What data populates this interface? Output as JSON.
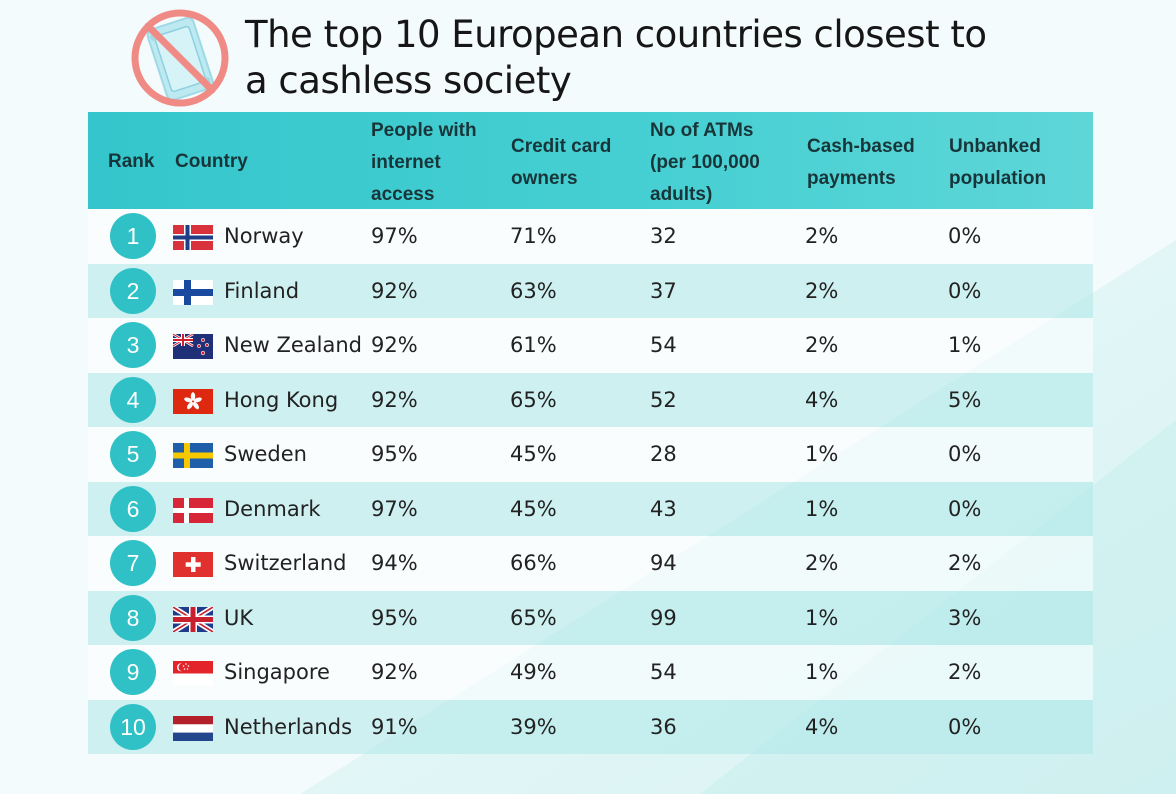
{
  "title_lines": [
    "The top 10 European countries closest to",
    "a cashless society"
  ],
  "icons": {
    "logo": "no-cash-icon"
  },
  "colors": {
    "header_bg": "#3ec9ce",
    "badge": "#2fc1c6",
    "row_even": "#c6eeee",
    "no_sign": "#f08a85"
  },
  "chart_data": {
    "type": "table",
    "title": "The top 10 European countries closest to a cashless society",
    "headers": {
      "rank": "Rank",
      "country": "Country",
      "internet": [
        "People with",
        "internet",
        "access"
      ],
      "credit": [
        "Credit card",
        "owners"
      ],
      "atm": [
        "No of ATMs",
        "(per 100,000",
        "adults)"
      ],
      "cash": [
        "Cash-based",
        "payments"
      ],
      "unbanked": [
        "Unbanked",
        "population"
      ]
    },
    "rows": [
      {
        "rank": "1",
        "country": "Norway",
        "flag": "norway-flag",
        "internet": "97%",
        "credit": "71%",
        "atm": "32",
        "cash": "2%",
        "unbanked": "0%"
      },
      {
        "rank": "2",
        "country": "Finland",
        "flag": "finland-flag",
        "internet": "92%",
        "credit": "63%",
        "atm": "37",
        "cash": "2%",
        "unbanked": "0%"
      },
      {
        "rank": "3",
        "country": "New Zealand",
        "flag": "new-zealand-flag",
        "internet": "92%",
        "credit": "61%",
        "atm": "54",
        "cash": "2%",
        "unbanked": "1%"
      },
      {
        "rank": "4",
        "country": "Hong Kong",
        "flag": "hong-kong-flag",
        "internet": "92%",
        "credit": "65%",
        "atm": "52",
        "cash": "4%",
        "unbanked": "5%"
      },
      {
        "rank": "5",
        "country": "Sweden",
        "flag": "sweden-flag",
        "internet": "95%",
        "credit": "45%",
        "atm": "28",
        "cash": "1%",
        "unbanked": "0%"
      },
      {
        "rank": "6",
        "country": "Denmark",
        "flag": "denmark-flag",
        "internet": "97%",
        "credit": "45%",
        "atm": "43",
        "cash": "1%",
        "unbanked": "0%"
      },
      {
        "rank": "7",
        "country": "Switzerland",
        "flag": "switzerland-flag",
        "internet": "94%",
        "credit": "66%",
        "atm": "94",
        "cash": "2%",
        "unbanked": "2%"
      },
      {
        "rank": "8",
        "country": "UK",
        "flag": "uk-flag",
        "internet": "95%",
        "credit": "65%",
        "atm": "99",
        "cash": "1%",
        "unbanked": "3%"
      },
      {
        "rank": "9",
        "country": "Singapore",
        "flag": "singapore-flag",
        "internet": "92%",
        "credit": "49%",
        "atm": "54",
        "cash": "1%",
        "unbanked": "2%"
      },
      {
        "rank": "10",
        "country": "Netherlands",
        "flag": "netherlands-flag",
        "internet": "91%",
        "credit": "39%",
        "atm": "36",
        "cash": "4%",
        "unbanked": "0%"
      }
    ]
  }
}
